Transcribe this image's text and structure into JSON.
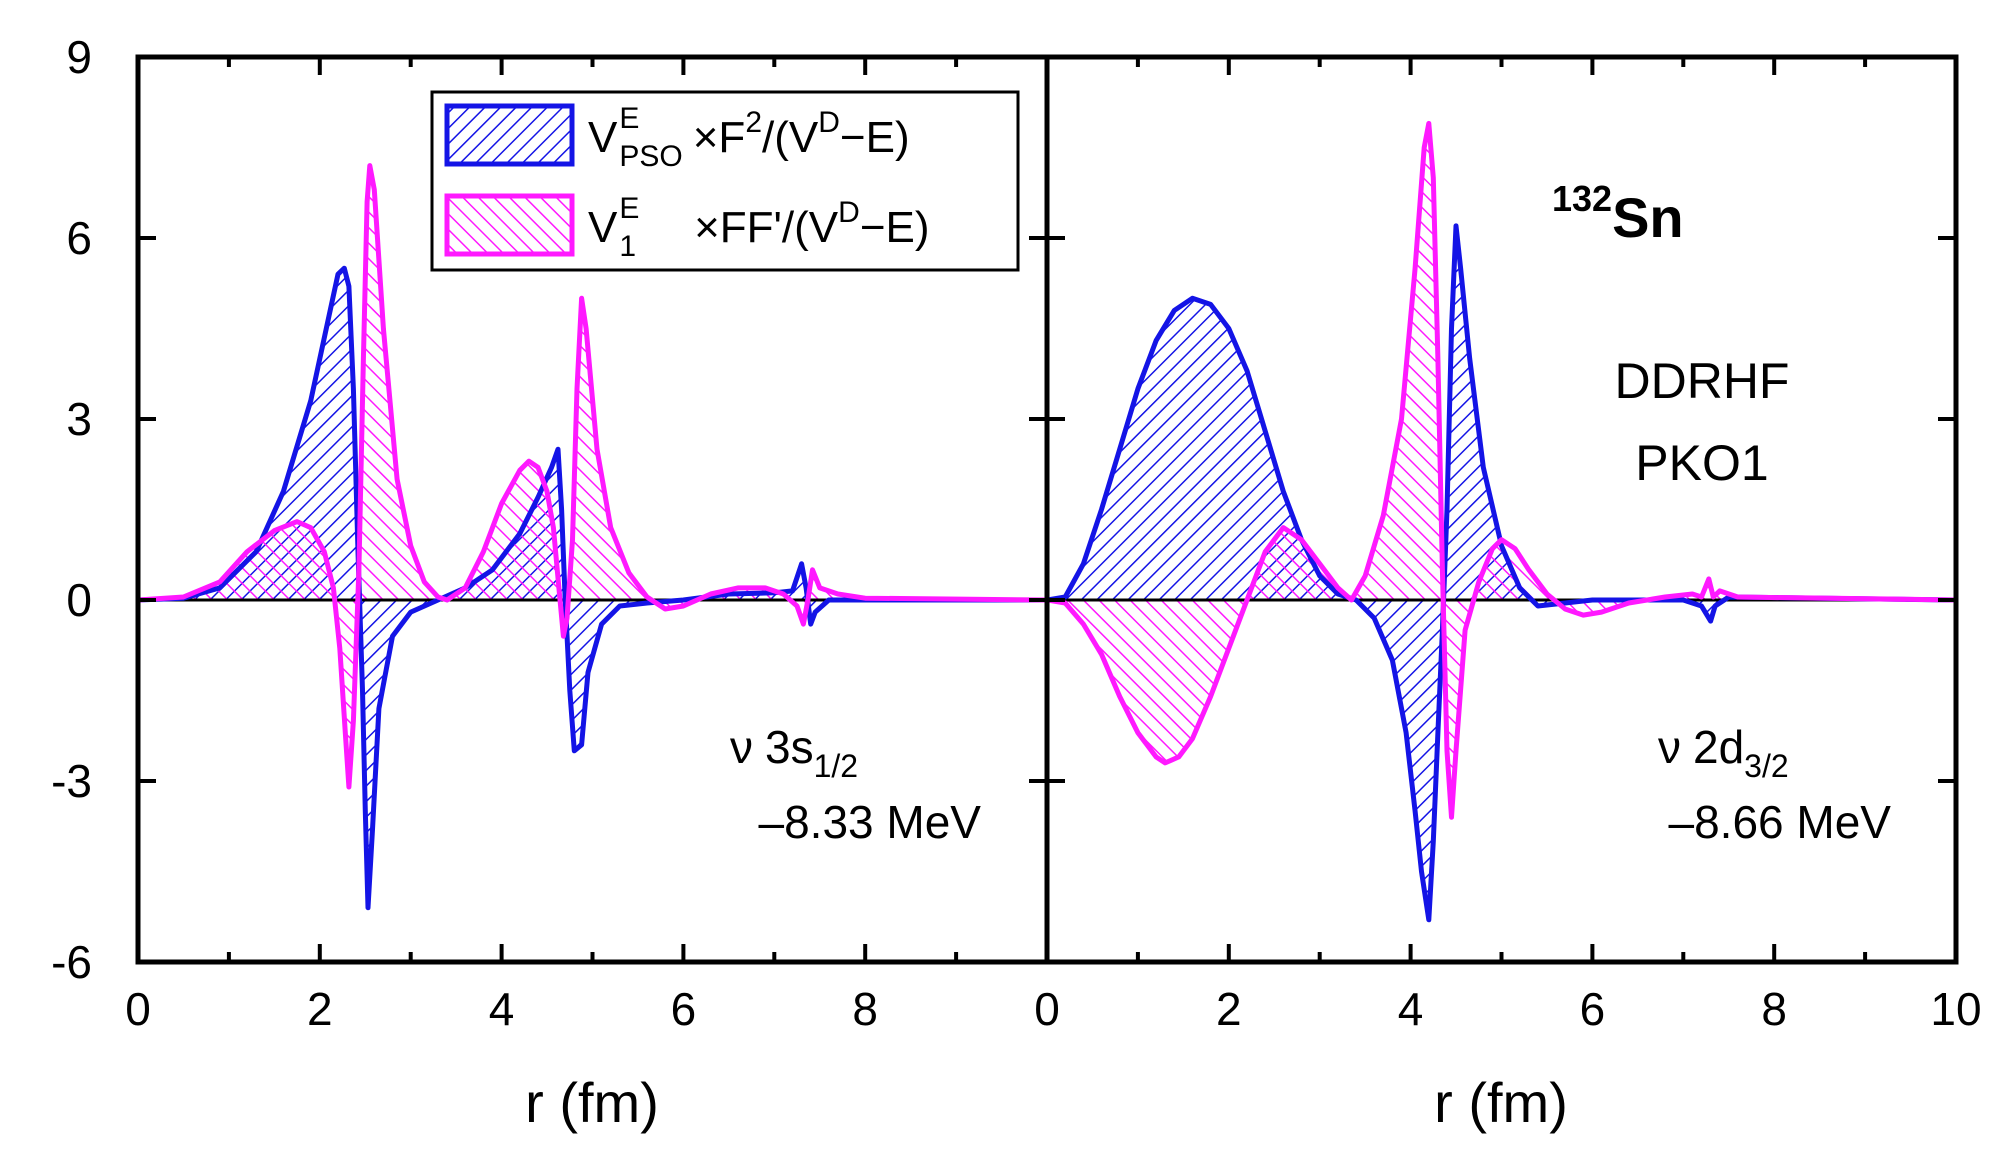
{
  "chart_data": {
    "type": "area",
    "xlabel": "r (fm)",
    "ylim": [
      -6,
      9
    ],
    "yticks": [
      -6,
      -3,
      0,
      3,
      6,
      9
    ],
    "colors": {
      "blue": "#1414e6",
      "magenta": "#ff19ff",
      "axis": "#000000"
    },
    "legend": {
      "placement": "top-left",
      "entries": [
        {
          "series": "blue",
          "label": "V_PSO^E ×F²/(V^D−E)"
        },
        {
          "series": "magenta",
          "label": "V_1^E ×FF'/(V^D−E)"
        }
      ]
    },
    "nucleus": {
      "mass": "132",
      "symbol": "Sn"
    },
    "method": [
      "DDRHF",
      "PKO1"
    ],
    "panels": [
      {
        "name": "left",
        "xlim": [
          0,
          10
        ],
        "xticks": [
          "0",
          "2",
          "4",
          "6",
          "8"
        ],
        "state": {
          "nu": "ν",
          "label": "3s",
          "sub": "1/2"
        },
        "energy": "–8.33 MeV",
        "series": [
          {
            "name": "V_PSO^E ×F²/(V^D−E)",
            "color": "blue",
            "points": [
              [
                0,
                0
              ],
              [
                0.5,
                0.03
              ],
              [
                0.9,
                0.2
              ],
              [
                1.3,
                0.8
              ],
              [
                1.6,
                1.8
              ],
              [
                1.9,
                3.3
              ],
              [
                2.1,
                4.7
              ],
              [
                2.2,
                5.4
              ],
              [
                2.27,
                5.5
              ],
              [
                2.32,
                5.2
              ],
              [
                2.37,
                3.5
              ],
              [
                2.42,
                0.8
              ],
              [
                2.47,
                -1.5
              ],
              [
                2.5,
                -3.5
              ],
              [
                2.53,
                -5.1
              ],
              [
                2.58,
                -3.8
              ],
              [
                2.65,
                -1.8
              ],
              [
                2.8,
                -0.6
              ],
              [
                3.0,
                -0.2
              ],
              [
                3.3,
                0
              ],
              [
                3.6,
                0.2
              ],
              [
                3.9,
                0.5
              ],
              [
                4.2,
                1.1
              ],
              [
                4.4,
                1.7
              ],
              [
                4.55,
                2.2
              ],
              [
                4.62,
                2.5
              ],
              [
                4.66,
                1.5
              ],
              [
                4.7,
                0
              ],
              [
                4.75,
                -1.5
              ],
              [
                4.8,
                -2.5
              ],
              [
                4.88,
                -2.4
              ],
              [
                4.95,
                -1.2
              ],
              [
                5.1,
                -0.4
              ],
              [
                5.3,
                -0.1
              ],
              [
                5.6,
                -0.05
              ],
              [
                6.0,
                0
              ],
              [
                6.5,
                0.1
              ],
              [
                7.0,
                0.12
              ],
              [
                7.2,
                0.15
              ],
              [
                7.3,
                0.6
              ],
              [
                7.35,
                0.2
              ],
              [
                7.4,
                -0.4
              ],
              [
                7.45,
                -0.2
              ],
              [
                7.6,
                0
              ],
              [
                10,
                0
              ]
            ]
          },
          {
            "name": "V_1^E ×FF'/(V^D−E)",
            "color": "magenta",
            "points": [
              [
                0,
                0
              ],
              [
                0.5,
                0.05
              ],
              [
                0.9,
                0.3
              ],
              [
                1.2,
                0.8
              ],
              [
                1.5,
                1.15
              ],
              [
                1.75,
                1.3
              ],
              [
                1.9,
                1.2
              ],
              [
                2.05,
                0.8
              ],
              [
                2.15,
                0.2
              ],
              [
                2.22,
                -0.8
              ],
              [
                2.28,
                -2.2
              ],
              [
                2.32,
                -3.1
              ],
              [
                2.37,
                -2.0
              ],
              [
                2.43,
                0.5
              ],
              [
                2.48,
                4.0
              ],
              [
                2.52,
                6.6
              ],
              [
                2.55,
                7.2
              ],
              [
                2.6,
                6.8
              ],
              [
                2.7,
                4.5
              ],
              [
                2.85,
                2.0
              ],
              [
                3.0,
                0.9
              ],
              [
                3.15,
                0.3
              ],
              [
                3.3,
                0.05
              ],
              [
                3.4,
                0
              ],
              [
                3.6,
                0.2
              ],
              [
                3.8,
                0.8
              ],
              [
                4.0,
                1.6
              ],
              [
                4.2,
                2.15
              ],
              [
                4.3,
                2.3
              ],
              [
                4.4,
                2.2
              ],
              [
                4.5,
                1.8
              ],
              [
                4.57,
                1.2
              ],
              [
                4.63,
                0.2
              ],
              [
                4.68,
                -0.6
              ],
              [
                4.72,
                -0.3
              ],
              [
                4.78,
                1.0
              ],
              [
                4.83,
                3.5
              ],
              [
                4.88,
                5.0
              ],
              [
                4.93,
                4.5
              ],
              [
                5.05,
                2.5
              ],
              [
                5.2,
                1.2
              ],
              [
                5.4,
                0.45
              ],
              [
                5.6,
                0.05
              ],
              [
                5.8,
                -0.15
              ],
              [
                6.0,
                -0.1
              ],
              [
                6.3,
                0.1
              ],
              [
                6.6,
                0.2
              ],
              [
                6.9,
                0.2
              ],
              [
                7.1,
                0.1
              ],
              [
                7.25,
                -0.1
              ],
              [
                7.32,
                -0.4
              ],
              [
                7.37,
                0
              ],
              [
                7.42,
                0.5
              ],
              [
                7.5,
                0.2
              ],
              [
                7.7,
                0.1
              ],
              [
                8.0,
                0.03
              ],
              [
                10,
                0
              ]
            ]
          }
        ]
      },
      {
        "name": "right",
        "xlim": [
          0,
          10
        ],
        "xticks": [
          "0",
          "2",
          "4",
          "6",
          "8",
          "10"
        ],
        "state": {
          "nu": "ν",
          "label": "2d",
          "sub": "3/2"
        },
        "energy": "–8.66 MeV",
        "series": [
          {
            "name": "V_PSO^E ×F²/(V^D−E)",
            "color": "blue",
            "points": [
              [
                0,
                0
              ],
              [
                0.2,
                0.05
              ],
              [
                0.4,
                0.6
              ],
              [
                0.6,
                1.5
              ],
              [
                0.8,
                2.5
              ],
              [
                1.0,
                3.5
              ],
              [
                1.2,
                4.3
              ],
              [
                1.4,
                4.8
              ],
              [
                1.6,
                5.0
              ],
              [
                1.8,
                4.9
              ],
              [
                2.0,
                4.5
              ],
              [
                2.2,
                3.8
              ],
              [
                2.4,
                2.8
              ],
              [
                2.6,
                1.8
              ],
              [
                2.8,
                1.0
              ],
              [
                3.0,
                0.4
              ],
              [
                3.2,
                0.1
              ],
              [
                3.4,
                0
              ],
              [
                3.6,
                -0.3
              ],
              [
                3.8,
                -1.0
              ],
              [
                3.95,
                -2.2
              ],
              [
                4.05,
                -3.5
              ],
              [
                4.12,
                -4.5
              ],
              [
                4.2,
                -5.3
              ],
              [
                4.25,
                -4.0
              ],
              [
                4.3,
                -2.2
              ],
              [
                4.35,
                -0.5
              ],
              [
                4.4,
                1.5
              ],
              [
                4.45,
                4.5
              ],
              [
                4.5,
                6.2
              ],
              [
                4.55,
                5.5
              ],
              [
                4.65,
                4.0
              ],
              [
                4.8,
                2.2
              ],
              [
                5.0,
                0.9
              ],
              [
                5.2,
                0.2
              ],
              [
                5.4,
                -0.1
              ],
              [
                5.7,
                -0.05
              ],
              [
                6.0,
                0
              ],
              [
                6.5,
                0
              ],
              [
                7.0,
                0
              ],
              [
                7.2,
                -0.1
              ],
              [
                7.3,
                -0.35
              ],
              [
                7.35,
                -0.1
              ],
              [
                7.5,
                0.05
              ],
              [
                10,
                0
              ]
            ]
          },
          {
            "name": "V_1^E ×FF'/(V^D−E)",
            "color": "magenta",
            "points": [
              [
                0,
                0
              ],
              [
                0.2,
                -0.05
              ],
              [
                0.4,
                -0.4
              ],
              [
                0.6,
                -0.9
              ],
              [
                0.8,
                -1.6
              ],
              [
                1.0,
                -2.2
              ],
              [
                1.2,
                -2.6
              ],
              [
                1.3,
                -2.7
              ],
              [
                1.45,
                -2.6
              ],
              [
                1.6,
                -2.3
              ],
              [
                1.8,
                -1.6
              ],
              [
                2.0,
                -0.8
              ],
              [
                2.2,
                0
              ],
              [
                2.4,
                0.8
              ],
              [
                2.6,
                1.2
              ],
              [
                2.8,
                1.0
              ],
              [
                3.0,
                0.6
              ],
              [
                3.2,
                0.2
              ],
              [
                3.35,
                0
              ],
              [
                3.5,
                0.4
              ],
              [
                3.7,
                1.4
              ],
              [
                3.9,
                3.0
              ],
              [
                4.05,
                5.5
              ],
              [
                4.15,
                7.5
              ],
              [
                4.2,
                7.9
              ],
              [
                4.25,
                7.0
              ],
              [
                4.3,
                4.0
              ],
              [
                4.35,
                0.5
              ],
              [
                4.4,
                -2.5
              ],
              [
                4.45,
                -3.6
              ],
              [
                4.5,
                -2.5
              ],
              [
                4.6,
                -0.5
              ],
              [
                4.75,
                0.3
              ],
              [
                4.9,
                0.85
              ],
              [
                5.0,
                1.0
              ],
              [
                5.15,
                0.85
              ],
              [
                5.3,
                0.5
              ],
              [
                5.5,
                0.1
              ],
              [
                5.7,
                -0.15
              ],
              [
                5.9,
                -0.25
              ],
              [
                6.1,
                -0.2
              ],
              [
                6.4,
                -0.05
              ],
              [
                6.8,
                0.05
              ],
              [
                7.1,
                0.1
              ],
              [
                7.2,
                0.05
              ],
              [
                7.28,
                0.35
              ],
              [
                7.33,
                0.05
              ],
              [
                7.4,
                0.15
              ],
              [
                7.6,
                0.05
              ],
              [
                10,
                0
              ]
            ]
          }
        ]
      }
    ]
  }
}
